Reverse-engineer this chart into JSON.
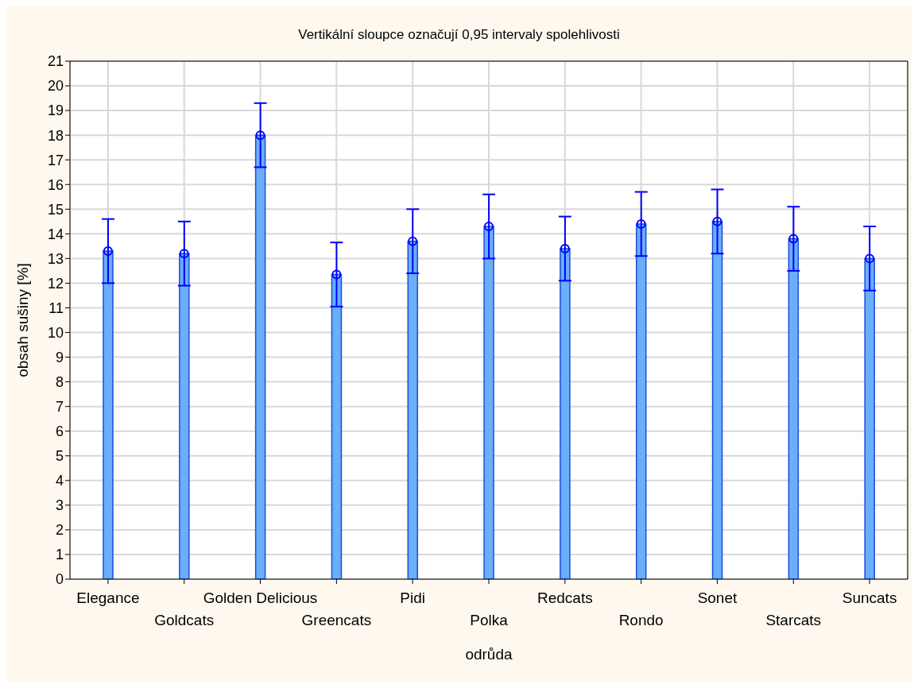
{
  "chart_data": {
    "type": "bar",
    "title": "Vertikální sloupce označují 0,95 intervaly spolehlivosti",
    "xlabel": "odrůda",
    "ylabel": "obsah sušiny  [%]",
    "categories": [
      "Elegance",
      "Goldcats",
      "Golden Delicious",
      "Greencats",
      "Pidi",
      "Polka",
      "Redcats",
      "Rondo",
      "Sonet",
      "Starcats",
      "Suncats"
    ],
    "series": [
      {
        "color": "#6aaefc",
        "values": [
          13.3,
          13.2,
          18.0,
          12.35,
          13.7,
          14.3,
          13.4,
          14.4,
          14.5,
          13.8,
          13.0
        ],
        "errors": [
          1.3,
          1.3,
          1.3,
          1.3,
          1.3,
          1.3,
          1.3,
          1.3,
          1.3,
          1.3,
          1.3
        ]
      },
      {
        "type": "scatter",
        "color": "#0000ff",
        "marker": "circle",
        "x": [
          "Elegance",
          "Goldcats",
          "Golden Delicious",
          "Greencats",
          "Pidi",
          "Polka",
          "Redcats",
          "Rondo",
          "Sonet",
          "Starcats",
          "Suncats"
        ],
        "values": [
          13.3,
          13.2,
          18.0,
          12.35,
          13.7,
          14.3,
          13.4,
          14.4,
          14.5,
          13.8,
          13.0
        ]
      }
    ],
    "grid": true,
    "ylim": [
      0,
      21
    ],
    "yticks": [
      0,
      1,
      2,
      3,
      4,
      5,
      6,
      7,
      8,
      9,
      10,
      11,
      12,
      13,
      14,
      15,
      16,
      17,
      18,
      19,
      20,
      21
    ]
  }
}
